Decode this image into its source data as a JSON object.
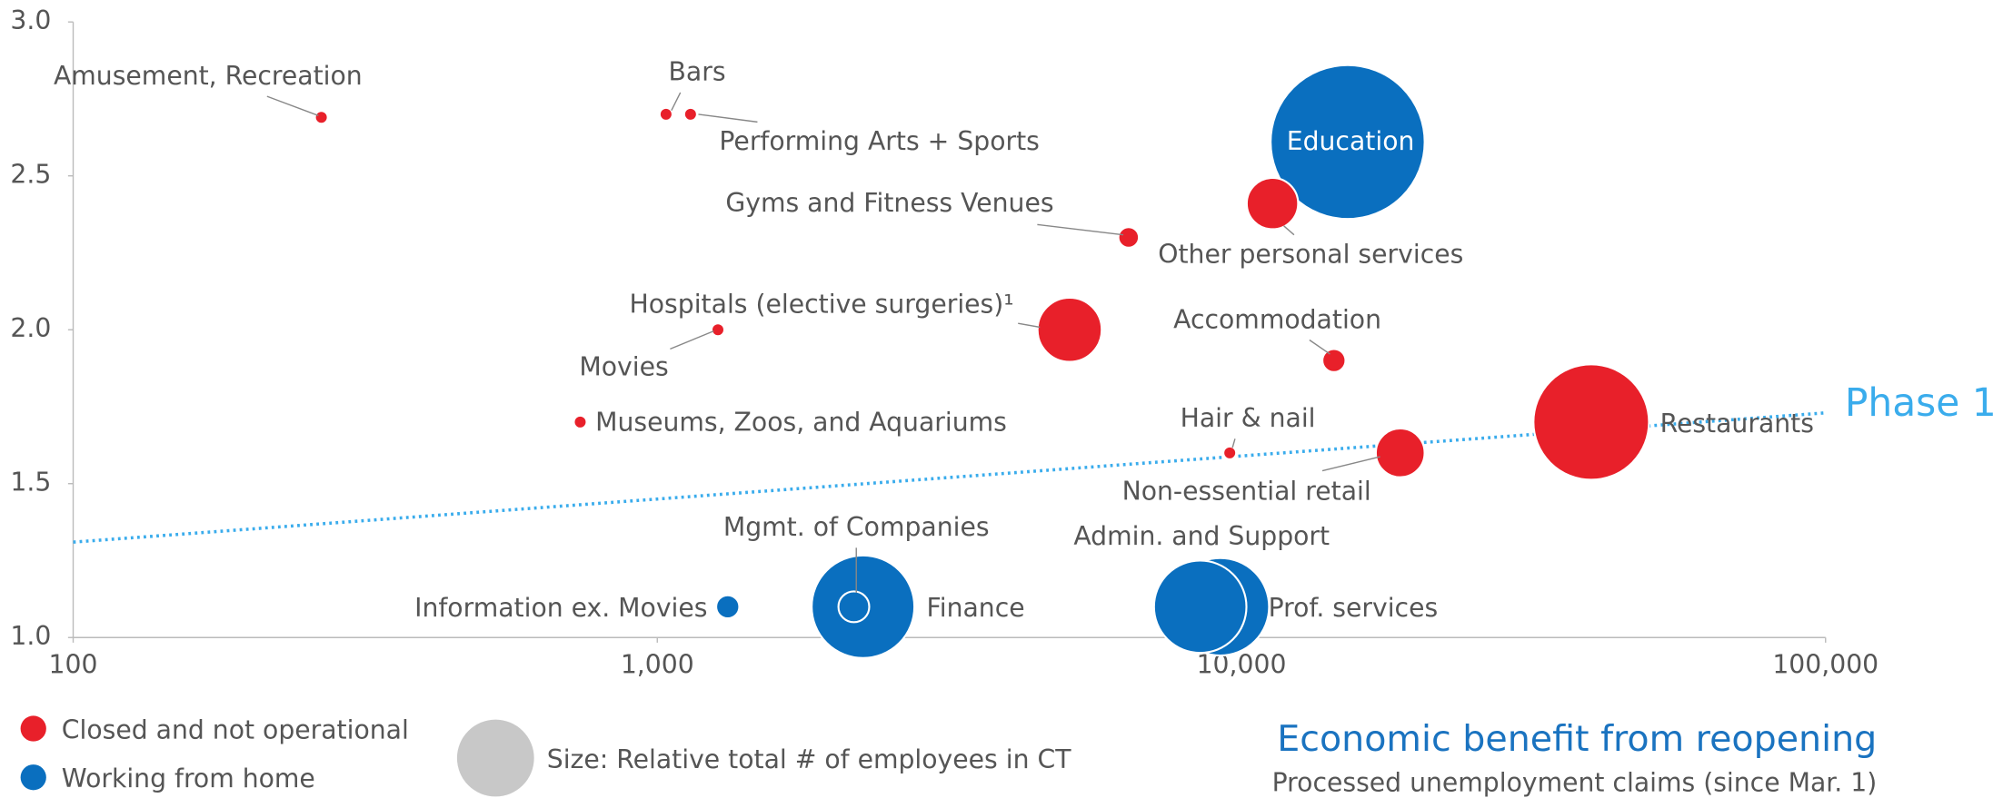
{
  "chart_data": {
    "type": "scatter",
    "xlabel": "Economic benefit from reopening",
    "xlabel_subtitle": "Processed unemployment claims (since Mar. 1)",
    "size_legend": "Size: Relative total # of employees in CT",
    "x_log": true,
    "xlim": [
      100,
      100000
    ],
    "xticks": [
      100,
      {
        "value": 1000,
        "label": "1,000"
      },
      {
        "value": 10000,
        "label": "10,000"
      },
      {
        "value": 100000,
        "label": "100,000"
      }
    ],
    "ylim": [
      1.0,
      3.0
    ],
    "yticks": [
      {
        "value": 1.0,
        "label": "1.0"
      },
      1.5,
      {
        "value": 2.0,
        "label": "2.0"
      },
      2.5,
      {
        "value": 3.0,
        "label": "3.0"
      }
    ],
    "trend": {
      "label": "Phase 1",
      "color": "#3aacec",
      "x": [
        100,
        100000
      ],
      "y": [
        1.31,
        1.73
      ]
    },
    "series": [
      {
        "name": "Working from home",
        "color": "#0a6fbf",
        "labels": [
          "Education",
          "Information ex. Movies",
          "Finance",
          "Mgmt. of Companies",
          "Prof. services",
          "Admin. and Support"
        ],
        "x": [
          15200,
          1320,
          2250,
          2170,
          9200,
          8500
        ],
        "values": [
          2.61,
          1.1,
          1.1,
          1.1,
          1.1,
          1.1
        ],
        "sizes": [
          3600,
          81,
          1600,
          144,
          1444,
          1296
        ]
      },
      {
        "name": "Closed and not operational",
        "color": "#e8202a",
        "labels": [
          "Amusement, Recreation",
          "Bars",
          "Performing Arts + Sports",
          "Other personal services",
          "Gyms and Fitness Venues",
          "Hospitals (elective surgeries)¹",
          "Movies",
          "Accommodation",
          "Museums, Zoos, and Aquariums",
          "Hair & nail",
          "Restaurants",
          "Non-essential retail"
        ],
        "x": [
          266,
          1035,
          1140,
          11300,
          6410,
          5080,
          1270,
          14400,
          738,
          9550,
          39700,
          18700
        ],
        "values": [
          2.69,
          2.7,
          2.7,
          2.41,
          2.3,
          2.0,
          2.0,
          1.9,
          1.7,
          1.6,
          1.7,
          1.6
        ],
        "sizes": [
          25,
          25,
          25,
          400,
          64,
          625,
          25,
          81,
          25,
          25,
          2025,
          361
        ]
      }
    ]
  }
}
